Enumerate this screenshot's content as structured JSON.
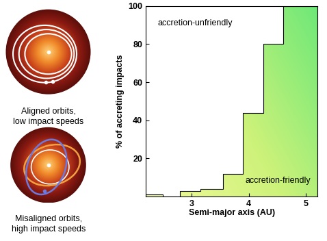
{
  "chart_data": {
    "type": "histogram",
    "bins": [
      2.2,
      2.5,
      2.8,
      3.15,
      3.55,
      3.9,
      4.25,
      4.6,
      5.2
    ],
    "values": [
      1,
      0,
      3,
      4,
      12,
      44,
      80,
      100
    ],
    "xlabel": "Semi-major axis (AU)",
    "ylabel": "% of accreting impacts",
    "xlim": [
      2.2,
      5.2
    ],
    "xticks": [
      3,
      4,
      5
    ],
    "ylim": [
      0,
      100
    ],
    "yticks": [
      20,
      40,
      60,
      80,
      100
    ],
    "color": "#6ee878",
    "annotations": [
      "accretion-unfriendly",
      "accretion-friendly"
    ]
  },
  "illustrations": [
    {
      "caption": "Aligned orbits,\nlow impact speeds"
    },
    {
      "caption": "Misaligned orbits,\nhigh impact speeds"
    }
  ]
}
